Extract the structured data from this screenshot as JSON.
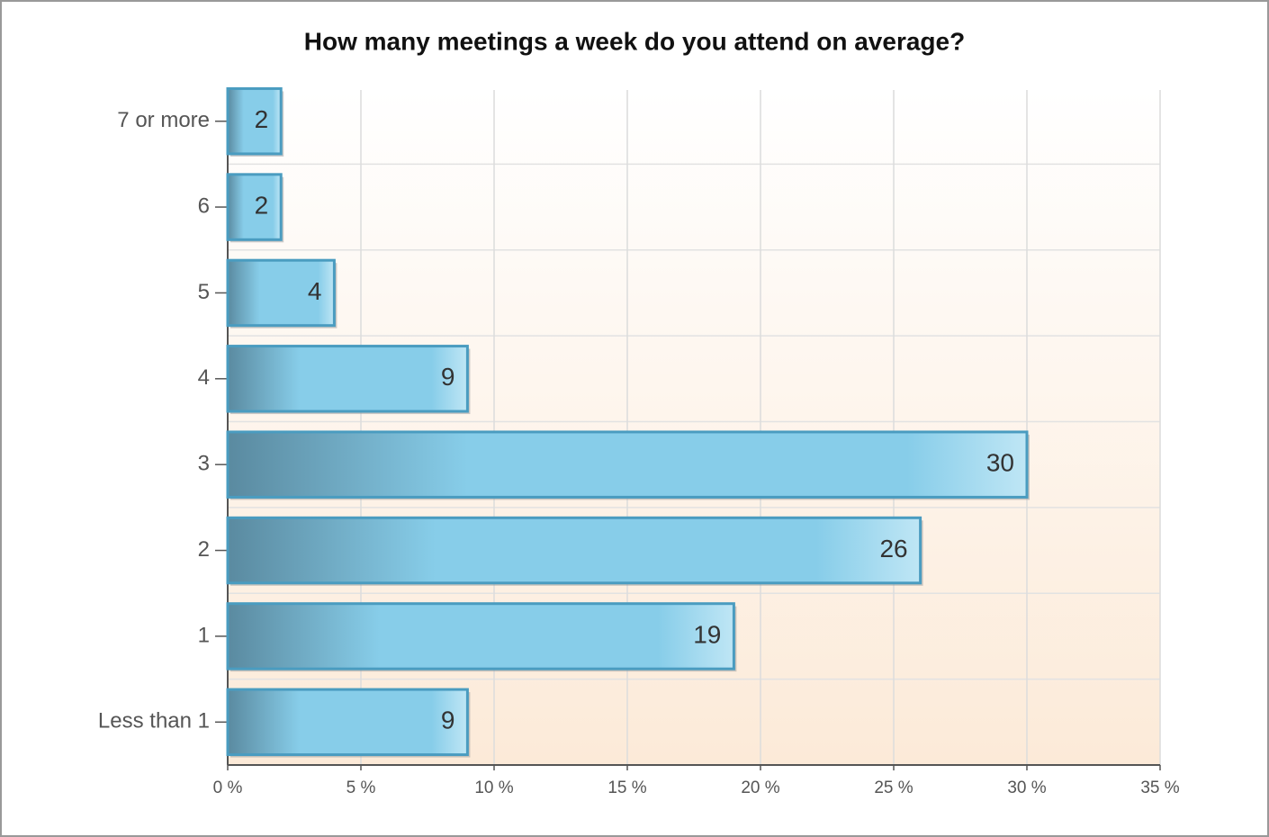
{
  "chart_data": {
    "type": "bar",
    "orientation": "horizontal",
    "title": "How many meetings a week do you attend on average?",
    "categories": [
      "7 or more",
      "6",
      "5",
      "4",
      "3",
      "2",
      "1",
      "Less than 1"
    ],
    "values": [
      2,
      2,
      4,
      9,
      30,
      26,
      19,
      9
    ],
    "color": "#87ceeb",
    "xlim": [
      0,
      35
    ],
    "xticks": [
      {
        "value": 0,
        "label": "0 %"
      },
      {
        "value": 5,
        "label": "5 %"
      },
      {
        "value": 10,
        "label": "10 %"
      },
      {
        "value": 15,
        "label": "15 %"
      },
      {
        "value": 20,
        "label": "20 %"
      },
      {
        "value": 25,
        "label": "25 %"
      },
      {
        "value": 30,
        "label": "30 %"
      },
      {
        "value": 35,
        "label": "35 %"
      }
    ],
    "grid": true
  }
}
